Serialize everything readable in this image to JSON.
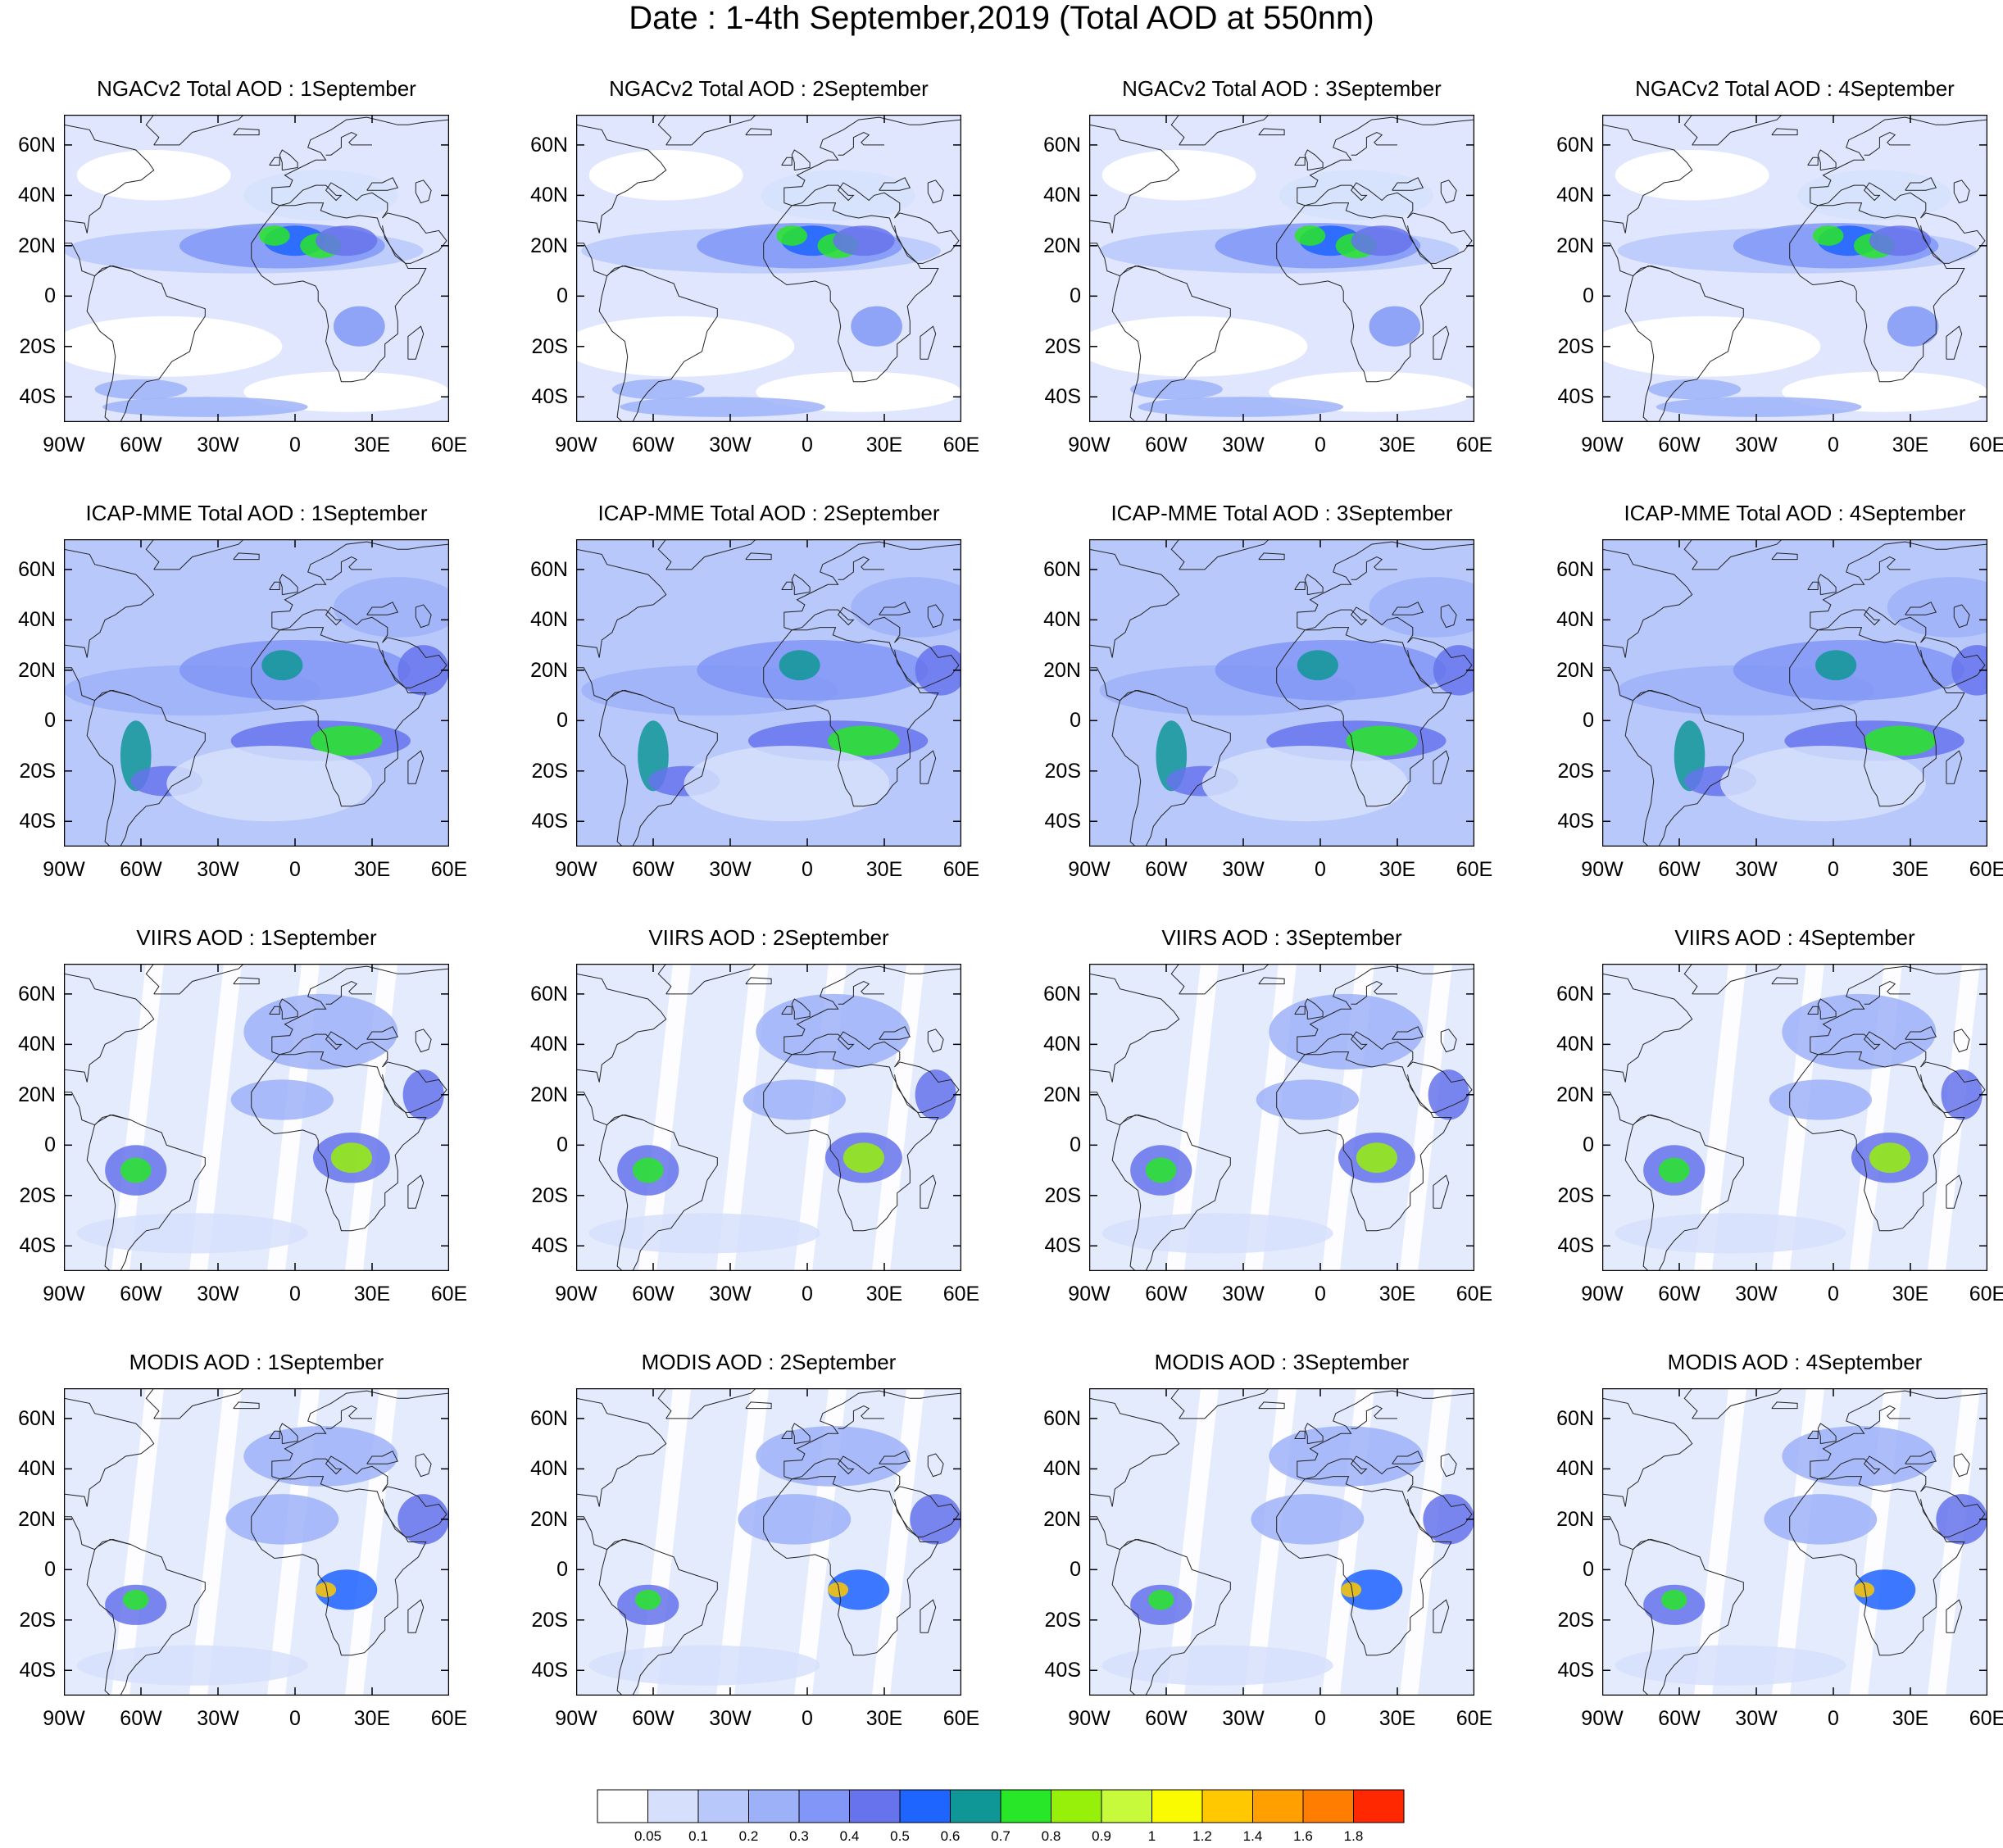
{
  "title": "Date : 1-4th September,2019 (Total AOD at 550nm)",
  "rows": [
    {
      "product": "NGACv2",
      "titles": [
        "NGACv2 Total AOD : 1September",
        "NGACv2 Total AOD : 2September",
        "NGACv2 Total AOD : 3September",
        "NGACv2 Total AOD : 4September"
      ]
    },
    {
      "product": "ICAP-MME",
      "titles": [
        "ICAP-MME Total AOD : 1September",
        "ICAP-MME Total AOD : 2September",
        "ICAP-MME Total AOD : 3September",
        "ICAP-MME Total AOD : 4September"
      ]
    },
    {
      "product": "VIIRS",
      "titles": [
        "VIIRS AOD : 1September",
        "VIIRS AOD : 2September",
        "VIIRS AOD : 3September",
        "VIIRS AOD : 4September"
      ]
    },
    {
      "product": "MODIS",
      "titles": [
        "MODIS AOD : 1September",
        "MODIS AOD : 2September",
        "MODIS AOD : 3September",
        "MODIS AOD : 4September"
      ]
    }
  ],
  "lat_labels": [
    "60N",
    "40N",
    "20N",
    "0",
    "20S",
    "40S"
  ],
  "lon_labels": [
    "90W",
    "60W",
    "30W",
    "0",
    "30E",
    "60E"
  ],
  "colorbar": {
    "colors": [
      "#ffffff",
      "#d6e0fc",
      "#b9c8fa",
      "#9db1f8",
      "#8196f6",
      "#6673ec",
      "#1e64ff",
      "#0f9696",
      "#28e628",
      "#96f00a",
      "#c8fa3c",
      "#fafa00",
      "#ffc800",
      "#ffa000",
      "#ff7d00",
      "#ff2800"
    ],
    "labels": [
      "0.05",
      "0.1",
      "0.2",
      "0.3",
      "0.4",
      "0.5",
      "0.6",
      "0.7",
      "0.8",
      "0.9",
      "1",
      "1.2",
      "1.4",
      "1.6",
      "1.8"
    ]
  }
}
